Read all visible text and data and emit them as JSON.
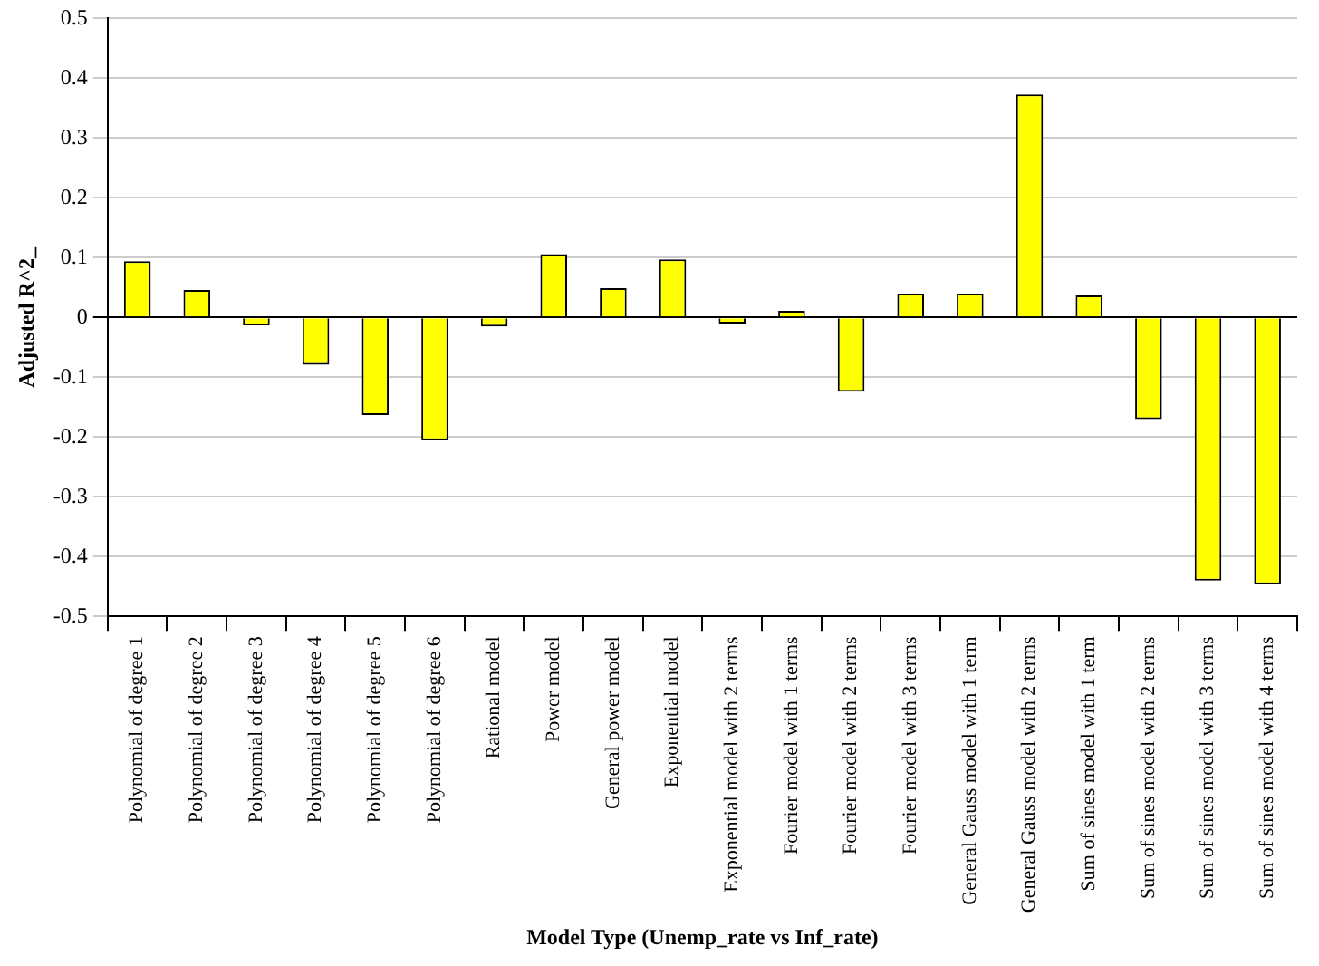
{
  "chart_data": {
    "type": "bar",
    "xlabel": "Model Type (Unemp_rate vs Inf_rate)",
    "ylabel": "Adjusted R^2_",
    "categories": [
      "Polynomial of degree 1",
      "Polynomial of degree 2",
      "Polynomial of degree 3",
      "Polynomial of degree 4",
      "Polynomial of degree 5",
      "Polynomial of degree 6",
      "Rational model",
      "Power model",
      "General power model",
      "Exponential model",
      "Exponential model with 2 terms",
      "Fourier model with 1 terms",
      "Fourier model with 2 terms",
      "Fourier model with 3 terms",
      "General Gauss model with 1 term",
      "General Gauss model with 2 terms",
      "Sum of sines model with 1 term",
      "Sum of sines model with 2 terms",
      "Sum of sines model with 3 terms",
      "Sum of sines model with 4 terms"
    ],
    "values": [
      0.094,
      0.046,
      -0.013,
      -0.079,
      -0.163,
      -0.205,
      -0.015,
      0.106,
      0.049,
      0.097,
      -0.01,
      0.011,
      -0.124,
      0.04,
      0.04,
      0.373,
      0.037,
      -0.17,
      -0.44,
      -0.446
    ],
    "color": "#ffff00",
    "ylim": [
      -0.5,
      0.5
    ],
    "yticks": [
      -0.5,
      -0.4,
      -0.3,
      -0.2,
      -0.1,
      0,
      0.1,
      0.2,
      0.3,
      0.4,
      0.5
    ],
    "grid": "y"
  }
}
